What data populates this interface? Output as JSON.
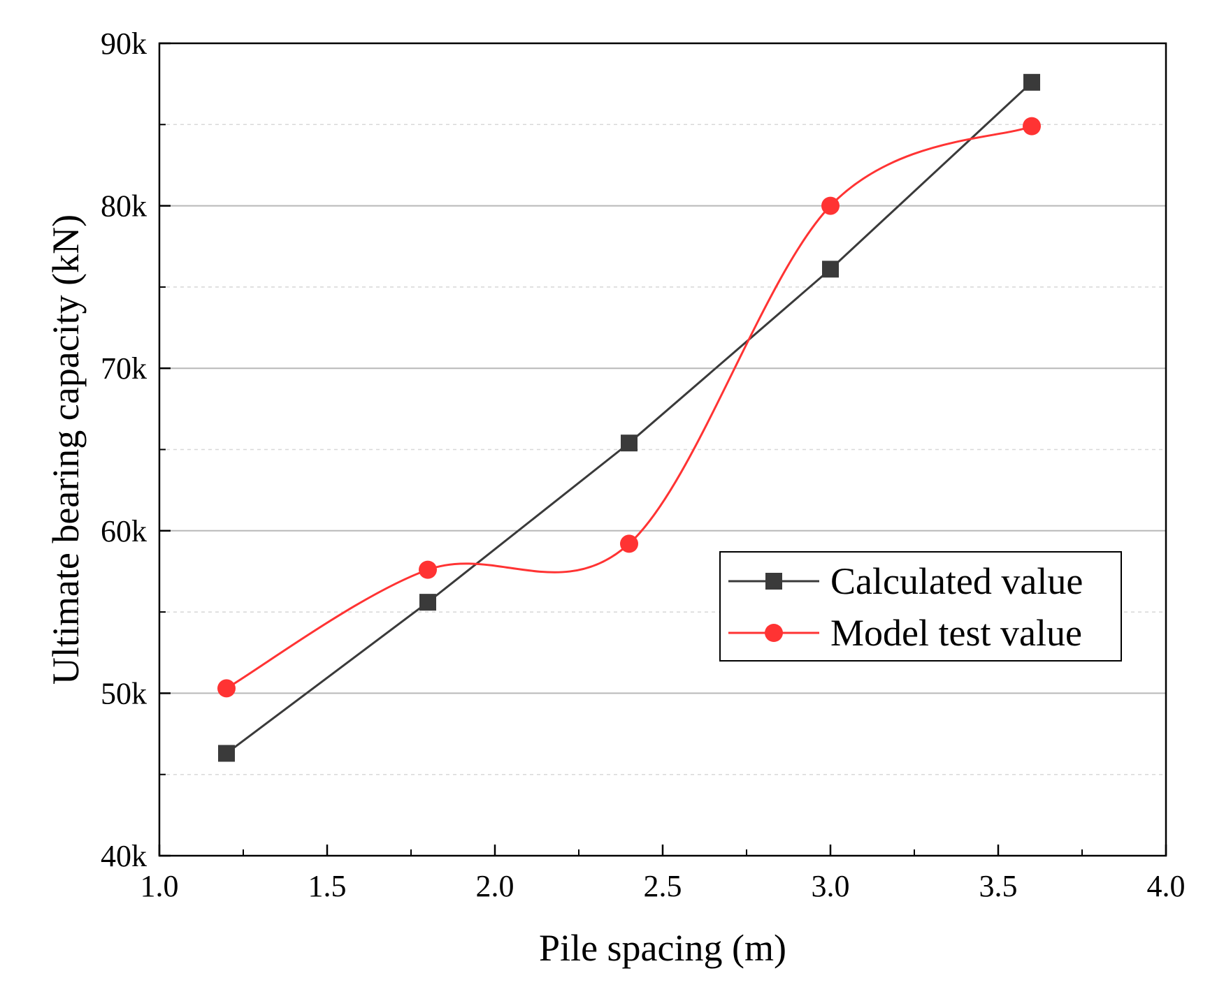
{
  "chart_data": {
    "type": "line",
    "title": "",
    "xlabel": "Pile spacing (m)",
    "ylabel": "Ultimate bearing capacity (kN)",
    "xlim": [
      1.0,
      4.0
    ],
    "ylim": [
      40000,
      90000
    ],
    "x_ticks": [
      1.0,
      1.5,
      2.0,
      2.5,
      3.0,
      3.5,
      4.0
    ],
    "x_tick_labels": [
      "1.0",
      "1.5",
      "2.0",
      "2.5",
      "3.0",
      "3.5",
      "4.0"
    ],
    "y_ticks": [
      40000,
      50000,
      60000,
      70000,
      80000,
      90000
    ],
    "y_tick_labels": [
      "40k",
      "50k",
      "60k",
      "70k",
      "80k",
      "90k"
    ],
    "grid": {
      "major_y": true,
      "minor_y": true,
      "style_major": "solid",
      "style_minor": "dashed"
    },
    "legend_position": "right-center",
    "series": [
      {
        "name": "Calculated value",
        "color": "#3a3a3a",
        "marker": "square",
        "curve": "straight",
        "x": [
          1.2,
          1.8,
          2.4,
          3.0,
          3.6
        ],
        "y": [
          46300,
          55600,
          65400,
          76100,
          87600
        ]
      },
      {
        "name": "Model test value",
        "color": "#ff3333",
        "marker": "circle",
        "curve": "smooth",
        "x": [
          1.2,
          1.8,
          2.4,
          3.0,
          3.6
        ],
        "y": [
          50300,
          57600,
          59200,
          80000,
          84900
        ]
      }
    ]
  }
}
